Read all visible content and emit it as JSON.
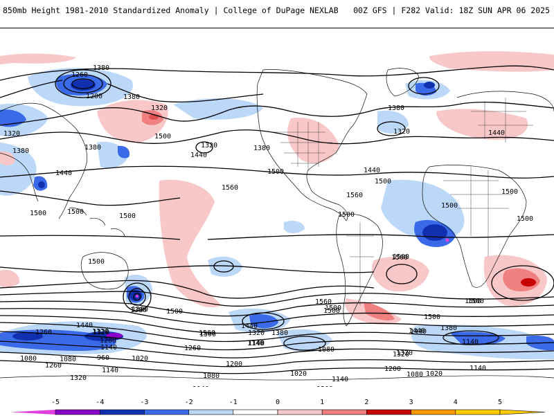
{
  "header": {
    "left_title": "850mb Height 1981-2010 Standardized Anomaly | College of DuPage NEXLAB",
    "right_title": "00Z GFS | F282 Valid: 18Z SUN APR 06 2025"
  },
  "colorbar": {
    "ticks": [
      "-5",
      "-4",
      "-3",
      "-2",
      "-1",
      "0",
      "1",
      "2",
      "3",
      "4",
      "5"
    ],
    "colors": [
      "#e040e0",
      "#8a00c8",
      "#1030b0",
      "#3a6ae8",
      "#bcd8f8",
      "#ffffff",
      "#f8c8c8",
      "#f08080",
      "#c80000",
      "#ff9900",
      "#ffcc00"
    ]
  },
  "contour_labels": [
    "1380",
    "1260",
    "1200",
    "1320",
    "1380",
    "1320",
    "1380",
    "1440",
    "1500",
    "1500",
    "1440",
    "1320",
    "1380",
    "1560",
    "1500",
    "1500",
    "1500",
    "1440",
    "1500",
    "1560",
    "1500",
    "1380",
    "1320",
    "1380",
    "1440",
    "1500",
    "1500",
    "1500",
    "1500",
    "1500",
    "1500",
    "1500",
    "1500",
    "1500",
    "1560",
    "1500",
    "1440",
    "1380",
    "1320",
    "1260",
    "1200",
    "1140",
    "1080",
    "960",
    "1020",
    "1140",
    "1260",
    "1080",
    "1140",
    "1320",
    "1260",
    "1440",
    "1320",
    "1380",
    "1440",
    "1560",
    "1500",
    "1500",
    "1440",
    "1380",
    "1320",
    "1200",
    "1140",
    "1080",
    "1020",
    "1140",
    "1080",
    "1200",
    "1140",
    "1260",
    "1200",
    "1140",
    "1080",
    "1020",
    "1200",
    "1260",
    "1260",
    "1320",
    "1380",
    "1140",
    "1500",
    "1320"
  ]
}
